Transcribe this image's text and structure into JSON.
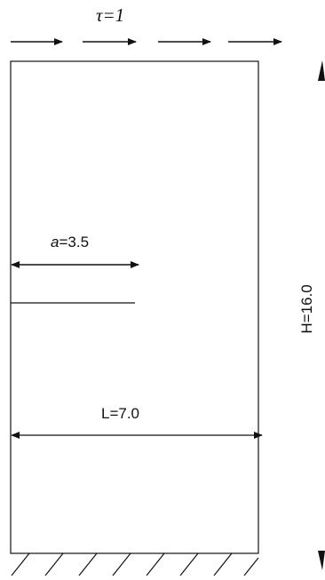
{
  "load": {
    "label": "τ=1"
  },
  "crack": {
    "label_symbol": "a",
    "label_value": "=3.5"
  },
  "width": {
    "label": "L=7.0"
  },
  "height": {
    "label": "H=16.0"
  },
  "colors": {
    "ink": "#111111",
    "background": "#ffffff"
  },
  "icons": {
    "load_arrow": "right-arrow-icon",
    "support": "fixed-support-hatching"
  }
}
